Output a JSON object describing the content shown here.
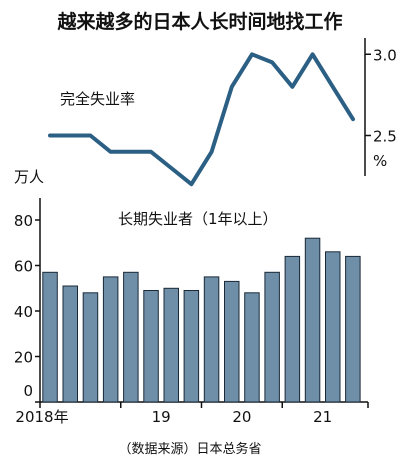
{
  "title": "越来越多的日本人长时间地找工作",
  "source": "（数据来源）日本总务省",
  "colors": {
    "line": "#2b5f84",
    "bar_fill": "#6f8ea8",
    "bar_stroke": "#1a2a38",
    "axis": "#111111"
  },
  "chart_data": [
    {
      "type": "line",
      "series_label": "完全失业率",
      "unit": "%",
      "ylim": [
        2.3,
        3.1
      ],
      "yticks": [
        3.0,
        2.5
      ],
      "yticks_position": "right",
      "values": [
        2.5,
        2.5,
        2.5,
        2.4,
        2.4,
        2.4,
        2.3,
        2.2,
        2.4,
        2.8,
        3.0,
        2.95,
        2.8,
        3.0,
        2.8,
        2.6
      ]
    },
    {
      "type": "bar",
      "series_label": "长期失业者（1年以上）",
      "unit": "万人",
      "ylim": [
        0,
        80
      ],
      "yticks": [
        0,
        20,
        40,
        60,
        80
      ],
      "xtick_labels": [
        "2018年",
        "19",
        "20",
        "21"
      ],
      "xtick_positions": [
        0,
        4,
        8,
        12
      ],
      "values": [
        57,
        51,
        48,
        55,
        57,
        49,
        50,
        49,
        55,
        53,
        48,
        57,
        64,
        72,
        66,
        64
      ],
      "grid": false
    }
  ]
}
